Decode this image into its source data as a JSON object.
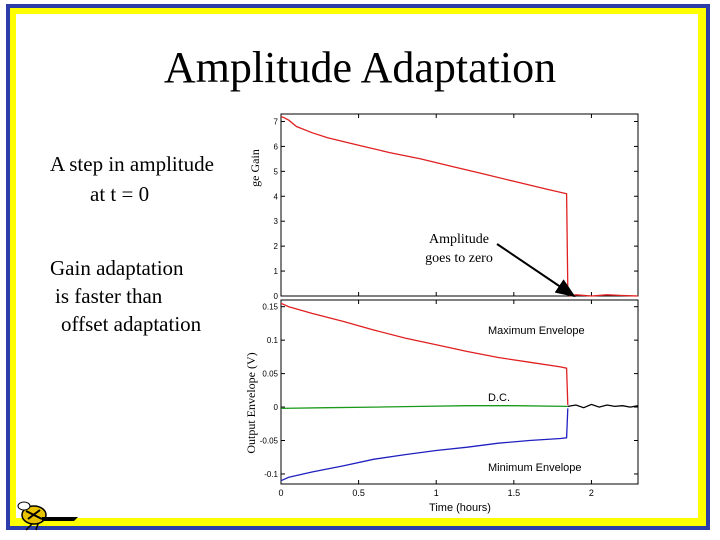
{
  "slide": {
    "title": "Amplitude Adaptation",
    "bullet1_line1": "A step in amplitude",
    "bullet1_line2": "at t = 0",
    "bullet2_line1": "Gain adaptation",
    "bullet2_line2": "is faster than",
    "bullet2_line3": "offset adaptation",
    "callout_line1": "Amplitude",
    "callout_line2": "goes to zero"
  },
  "colors": {
    "frame_blue": "#2e3ea8",
    "frame_yellow": "#ffff00",
    "red": "#e02020",
    "green": "#1a9a1a",
    "blue": "#2020c0"
  },
  "chart_data": [
    {
      "type": "line",
      "ylabel": "ge Gain",
      "yticks": [
        "0",
        "1",
        "2",
        "3",
        "4",
        "5",
        "6",
        "7"
      ],
      "ylim": [
        0,
        7.3
      ],
      "xlim": [
        0,
        2.3
      ],
      "series": [
        {
          "color": "#e02020",
          "x": [
            0,
            0.02,
            0.05,
            0.1,
            0.2,
            0.3,
            0.5,
            0.7,
            0.9,
            1.1,
            1.3,
            1.5,
            1.7,
            1.84,
            1.848,
            1.86,
            1.9,
            2.0,
            2.1,
            2.2,
            2.3
          ],
          "y": [
            7.2,
            7.15,
            7.05,
            6.8,
            6.55,
            6.35,
            6.05,
            5.75,
            5.5,
            5.2,
            4.9,
            4.6,
            4.3,
            4.1,
            0.3,
            0.0,
            0.05,
            0.0,
            0.05,
            0.02,
            0.0
          ]
        }
      ]
    },
    {
      "type": "line",
      "xlabel": "Time (hours)",
      "ylabel": "Output Envelope (V)",
      "xticks": [
        "0",
        "0.5",
        "1",
        "1.5",
        "2"
      ],
      "yticks": [
        "-0.1",
        "-0.05",
        "0",
        "0.05",
        "0.1",
        "0.15"
      ],
      "ylim": [
        -0.115,
        0.16
      ],
      "xlim": [
        0,
        2.3
      ],
      "series": [
        {
          "name": "Maximum Envelope",
          "color": "#e02020",
          "x": [
            0,
            0.05,
            0.2,
            0.4,
            0.6,
            0.8,
            1.0,
            1.2,
            1.4,
            1.6,
            1.8,
            1.84,
            1.848
          ],
          "y": [
            0.155,
            0.15,
            0.14,
            0.128,
            0.115,
            0.103,
            0.093,
            0.083,
            0.074,
            0.067,
            0.06,
            0.058,
            0.003
          ]
        },
        {
          "name": "D.C.",
          "color": "#1a9a1a",
          "x": [
            0,
            0.3,
            0.6,
            0.9,
            1.2,
            1.5,
            1.848
          ],
          "y": [
            -0.002,
            -0.001,
            0,
            0.001,
            0.002,
            0.002,
            0.001
          ]
        },
        {
          "color": "#000000",
          "x": [
            1.848,
            1.9,
            1.95,
            2.0,
            2.05,
            2.1,
            2.15,
            2.2,
            2.25,
            2.3
          ],
          "y": [
            0.001,
            0.003,
            -0.001,
            0.004,
            0.0,
            0.003,
            0.001,
            0.002,
            0.0,
            0.002
          ]
        },
        {
          "name": "Minimum Envelope",
          "color": "#2020c0",
          "x": [
            0,
            0.05,
            0.2,
            0.4,
            0.6,
            0.8,
            1.0,
            1.2,
            1.4,
            1.6,
            1.8,
            1.84,
            1.848
          ],
          "y": [
            -0.11,
            -0.105,
            -0.097,
            -0.088,
            -0.078,
            -0.071,
            -0.065,
            -0.06,
            -0.054,
            -0.05,
            -0.047,
            -0.046,
            -0.002
          ]
        }
      ]
    }
  ]
}
